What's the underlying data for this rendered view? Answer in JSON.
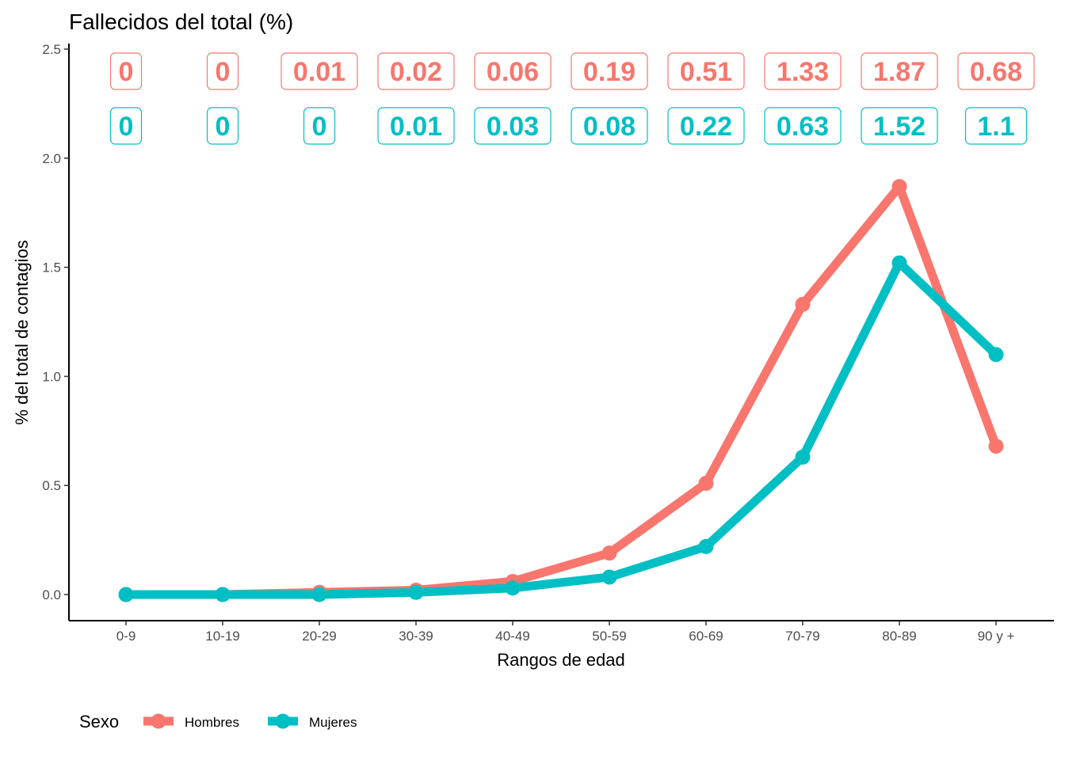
{
  "chart_data": {
    "type": "line",
    "title": "Fallecidos del total (%)",
    "xlabel": "Rangos de edad",
    "ylabel": "% del total de contagios",
    "categories": [
      "0-9",
      "10-19",
      "20-29",
      "30-39",
      "40-49",
      "50-59",
      "60-69",
      "70-79",
      "80-89",
      "90 y +"
    ],
    "ylim": [
      0,
      2.5
    ],
    "yticks": [
      0.0,
      0.5,
      1.0,
      1.5,
      2.0,
      2.5
    ],
    "ytick_labels": [
      "0.0",
      "0.5",
      "1.0",
      "1.5",
      "2.0",
      "2.5"
    ],
    "grid": false,
    "legend": {
      "title": "Sexo",
      "position": "bottom-left"
    },
    "series": [
      {
        "name": "Hombres",
        "color": "#F8766D",
        "values": [
          0,
          0,
          0.01,
          0.02,
          0.06,
          0.19,
          0.51,
          1.33,
          1.87,
          0.68
        ],
        "labels": [
          "0",
          "0",
          "0.01",
          "0.02",
          "0.06",
          "0.19",
          "0.51",
          "1.33",
          "1.87",
          "0.68"
        ]
      },
      {
        "name": "Mujeres",
        "color": "#00BFC4",
        "values": [
          0,
          0,
          0,
          0.01,
          0.03,
          0.08,
          0.22,
          0.63,
          1.52,
          1.1
        ],
        "labels": [
          "0",
          "0",
          "0",
          "0.01",
          "0.03",
          "0.08",
          "0.22",
          "0.63",
          "1.52",
          "1.1"
        ]
      }
    ]
  }
}
